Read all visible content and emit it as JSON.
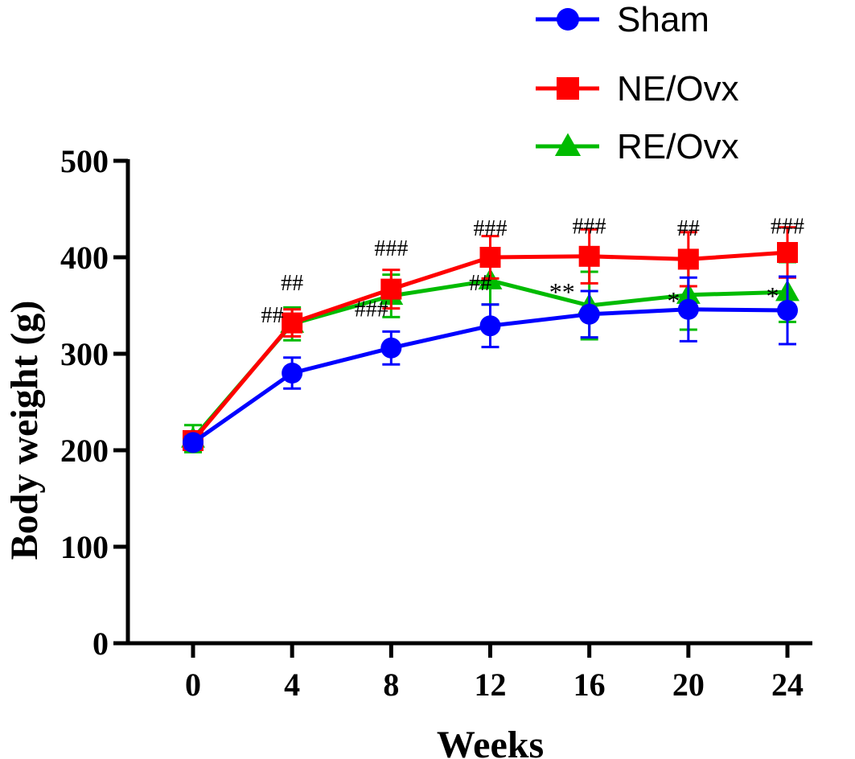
{
  "chart_data": {
    "type": "line",
    "title": "",
    "xlabel": "Weeks",
    "ylabel": "Body weight (g)",
    "x": [
      0,
      4,
      8,
      12,
      16,
      20,
      24
    ],
    "x_ticks": [
      "0",
      "4",
      "8",
      "12",
      "16",
      "20",
      "24"
    ],
    "ylim": [
      0,
      500
    ],
    "y_ticks": [
      "0",
      "100",
      "200",
      "300",
      "400",
      "500"
    ],
    "legend_position": "top-right",
    "series": [
      {
        "name": "Sham",
        "color": "#0000ff",
        "marker": "circle",
        "values": [
          208,
          280,
          306,
          329,
          341,
          346,
          345
        ],
        "errors": [
          6,
          16,
          17,
          22,
          24,
          33,
          35
        ]
      },
      {
        "name": "NE/Ovx",
        "color": "#ff0000",
        "marker": "square",
        "values": [
          210,
          332,
          367,
          400,
          401,
          398,
          405
        ],
        "errors": [
          5,
          14,
          20,
          22,
          28,
          28,
          26
        ]
      },
      {
        "name": "RE/Ovx",
        "color": "#00bb00",
        "marker": "triangle",
        "values": [
          212,
          331,
          360,
          376,
          350,
          361,
          364
        ],
        "errors": [
          14,
          17,
          22,
          25,
          35,
          36,
          31
        ]
      }
    ],
    "annotations": [
      {
        "text": "##",
        "x": 4,
        "y": 374
      },
      {
        "text": "##",
        "x": 3.2,
        "y": 341
      },
      {
        "text": "###",
        "x": 8,
        "y": 410
      },
      {
        "text": "###",
        "x": 7.2,
        "y": 347
      },
      {
        "text": "###",
        "x": 12,
        "y": 431
      },
      {
        "text": "##",
        "x": 11.6,
        "y": 374
      },
      {
        "text": "**",
        "x": 14.9,
        "y": 370
      },
      {
        "text": "###",
        "x": 16,
        "y": 433
      },
      {
        "text": "*",
        "x": 19.4,
        "y": 361
      },
      {
        "text": "##",
        "x": 20,
        "y": 431
      },
      {
        "text": "*",
        "x": 23.4,
        "y": 366
      },
      {
        "text": "###",
        "x": 24,
        "y": 433
      }
    ]
  }
}
